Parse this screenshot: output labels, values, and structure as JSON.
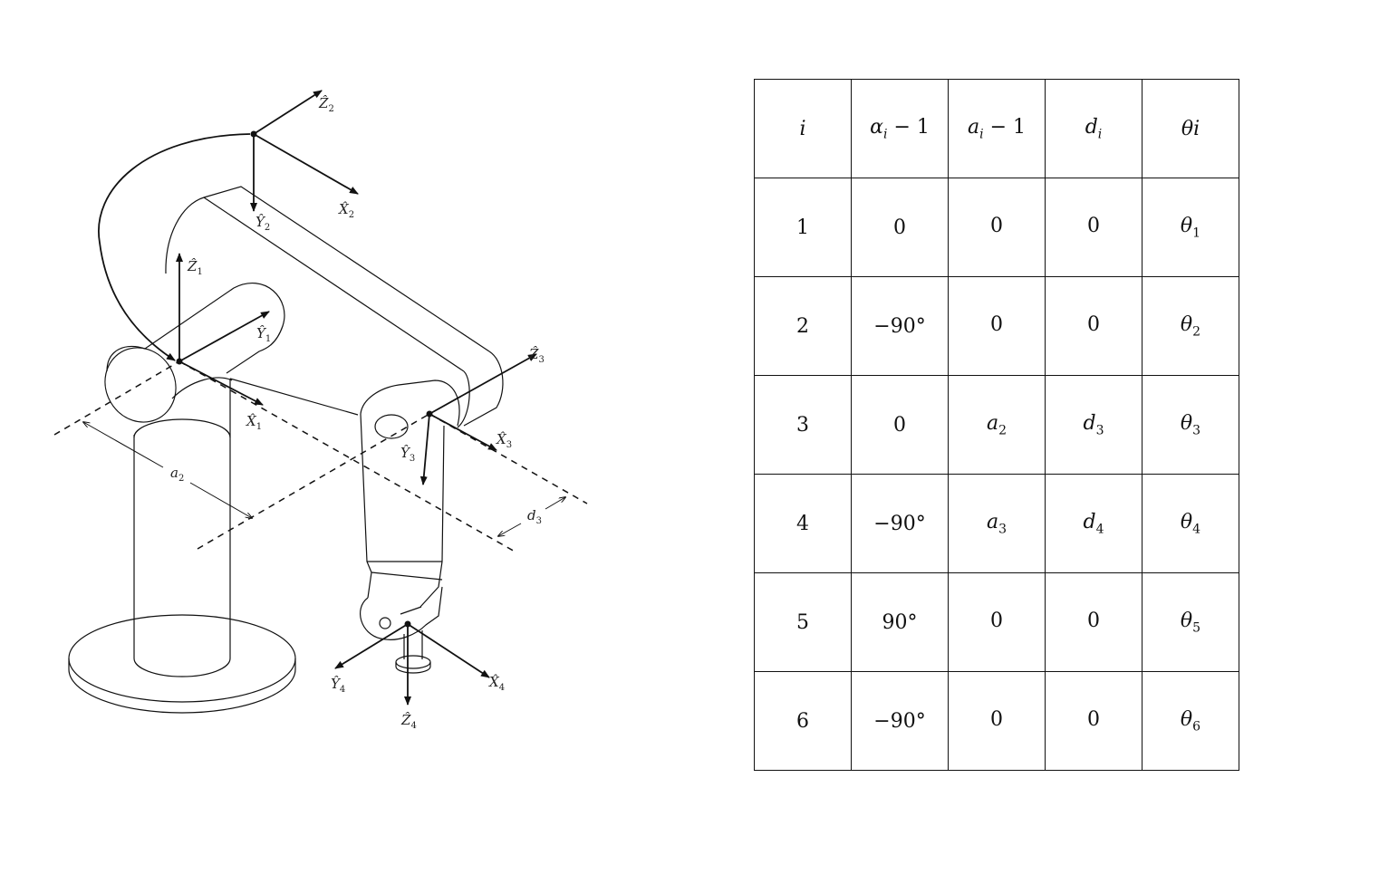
{
  "figure": {
    "frame_labels": {
      "z1": {
        "base": "Ẑ",
        "sub": "1"
      },
      "y1": {
        "base": "Ŷ",
        "sub": "1"
      },
      "x1": {
        "base": "X̂",
        "sub": "1"
      },
      "z2": {
        "base": "Ẑ",
        "sub": "2"
      },
      "y2": {
        "base": "Ŷ",
        "sub": "2"
      },
      "x2": {
        "base": "X̂",
        "sub": "2"
      },
      "z3": {
        "base": "Ẑ",
        "sub": "3"
      },
      "y3": {
        "base": "Ŷ",
        "sub": "3"
      },
      "x3": {
        "base": "X̂",
        "sub": "3"
      },
      "z4": {
        "base": "Ẑ",
        "sub": "4"
      },
      "y4": {
        "base": "Ŷ",
        "sub": "4"
      },
      "x4": {
        "base": "X̂",
        "sub": "4"
      }
    },
    "dimension_labels": {
      "a2": {
        "base": "a",
        "sub": "2"
      },
      "d3": {
        "base": "d",
        "sub": "3"
      }
    }
  },
  "table": {
    "headers": [
      {
        "base": "i",
        "sub": "",
        "rest": ""
      },
      {
        "base": "α",
        "sub": "i",
        "rest": " − 1"
      },
      {
        "base": "a",
        "sub": "i",
        "rest": " − 1"
      },
      {
        "base": "d",
        "sub": "i",
        "rest": ""
      },
      {
        "base": "θi",
        "sub": "",
        "rest": ""
      }
    ],
    "rows": [
      {
        "i": "1",
        "alpha": "0",
        "a": {
          "base": "0",
          "sub": ""
        },
        "d": {
          "base": "0",
          "sub": ""
        },
        "theta": {
          "base": "θ",
          "sub": "1"
        }
      },
      {
        "i": "2",
        "alpha": "−90°",
        "a": {
          "base": "0",
          "sub": ""
        },
        "d": {
          "base": "0",
          "sub": ""
        },
        "theta": {
          "base": "θ",
          "sub": "2"
        }
      },
      {
        "i": "3",
        "alpha": "0",
        "a": {
          "base": "a",
          "sub": "2"
        },
        "d": {
          "base": "d",
          "sub": "3"
        },
        "theta": {
          "base": "θ",
          "sub": "3"
        }
      },
      {
        "i": "4",
        "alpha": "−90°",
        "a": {
          "base": "a",
          "sub": "3"
        },
        "d": {
          "base": "d",
          "sub": "4"
        },
        "theta": {
          "base": "θ",
          "sub": "4"
        }
      },
      {
        "i": "5",
        "alpha": "90°",
        "a": {
          "base": "0",
          "sub": ""
        },
        "d": {
          "base": "0",
          "sub": ""
        },
        "theta": {
          "base": "θ",
          "sub": "5"
        }
      },
      {
        "i": "6",
        "alpha": "−90°",
        "a": {
          "base": "0",
          "sub": ""
        },
        "d": {
          "base": "0",
          "sub": ""
        },
        "theta": {
          "base": "θ",
          "sub": "6"
        }
      }
    ]
  }
}
